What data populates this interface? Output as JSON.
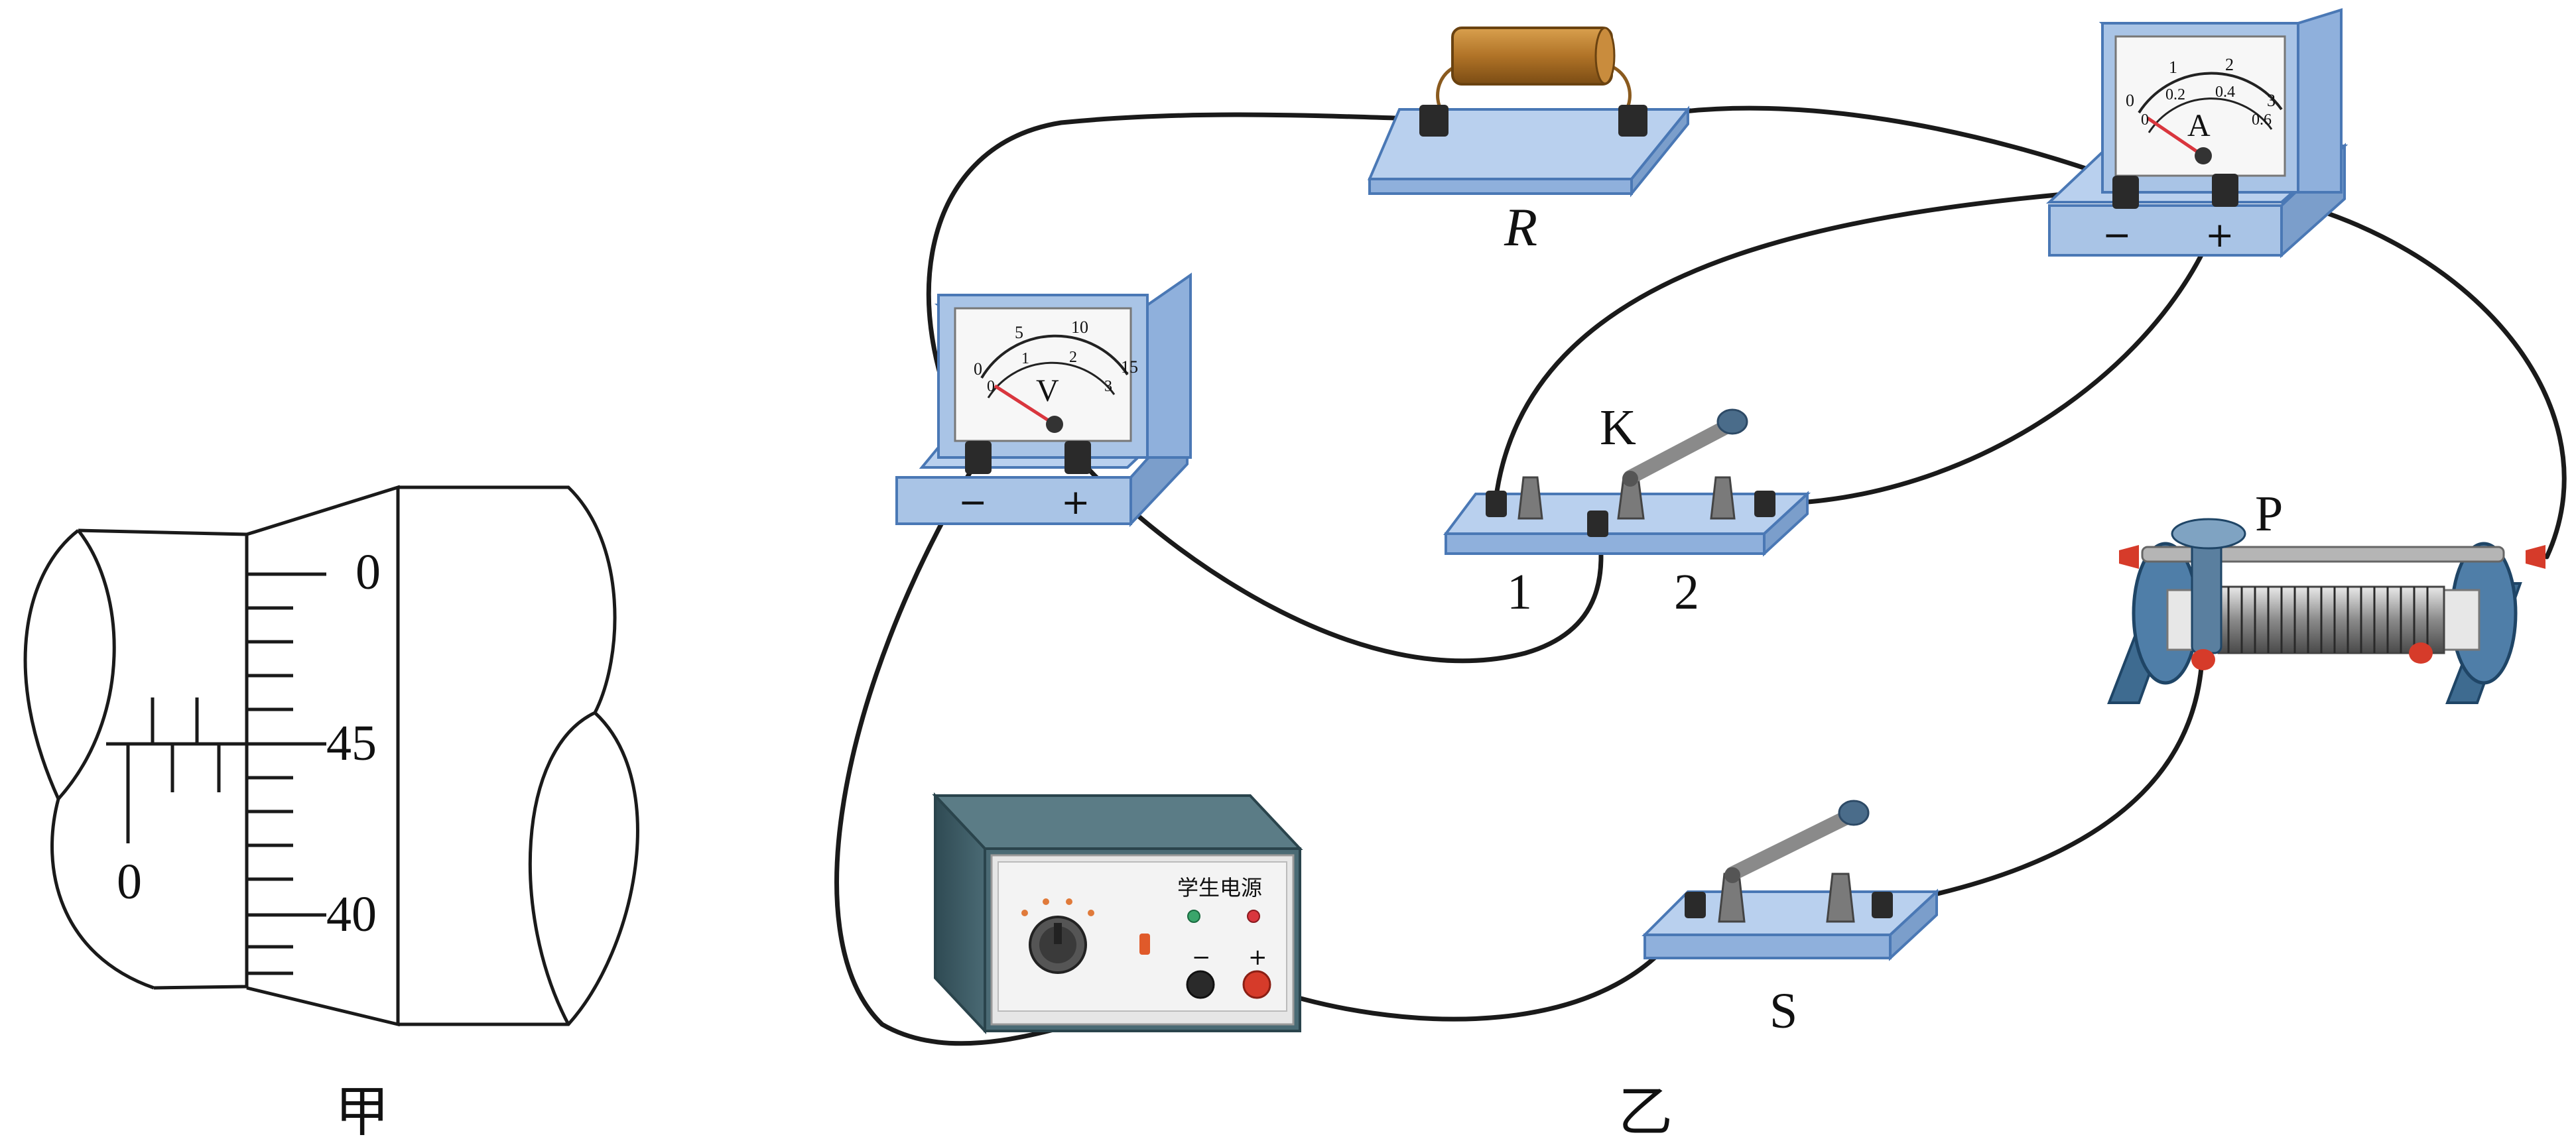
{
  "figure_a": {
    "caption": "甲",
    "main_scale_zero": "0",
    "thimble_marks": [
      "0",
      "45",
      "40"
    ]
  },
  "figure_b": {
    "caption": "乙",
    "resistor_label": "R",
    "voltmeter": {
      "symbol": "V",
      "scale_top": [
        "0",
        "5",
        "10",
        "15"
      ],
      "scale_bottom": [
        "0",
        "1",
        "2",
        "3"
      ],
      "minus": "−",
      "plus": "+"
    },
    "ammeter": {
      "symbol": "A",
      "scale_top": [
        "0",
        "1",
        "2",
        "3"
      ],
      "scale_bottom": [
        "0",
        "0.2",
        "0.4",
        "0.6"
      ],
      "minus": "−",
      "plus": "+"
    },
    "switch_k": {
      "label": "K",
      "pos1": "1",
      "pos2": "2"
    },
    "rheostat_label": "P",
    "switch_s_label": "S",
    "power_supply": {
      "title": "学生电源",
      "minus": "−",
      "plus": "+"
    }
  },
  "colors": {
    "wire": "#1a1a1a",
    "meter_body": "#a9c4e6",
    "meter_edge": "#4a78b5",
    "needle": "#d9363e",
    "terminal_red": "#d63b2a",
    "resistor": "#b07327",
    "psu_case": "#3f5c66"
  }
}
